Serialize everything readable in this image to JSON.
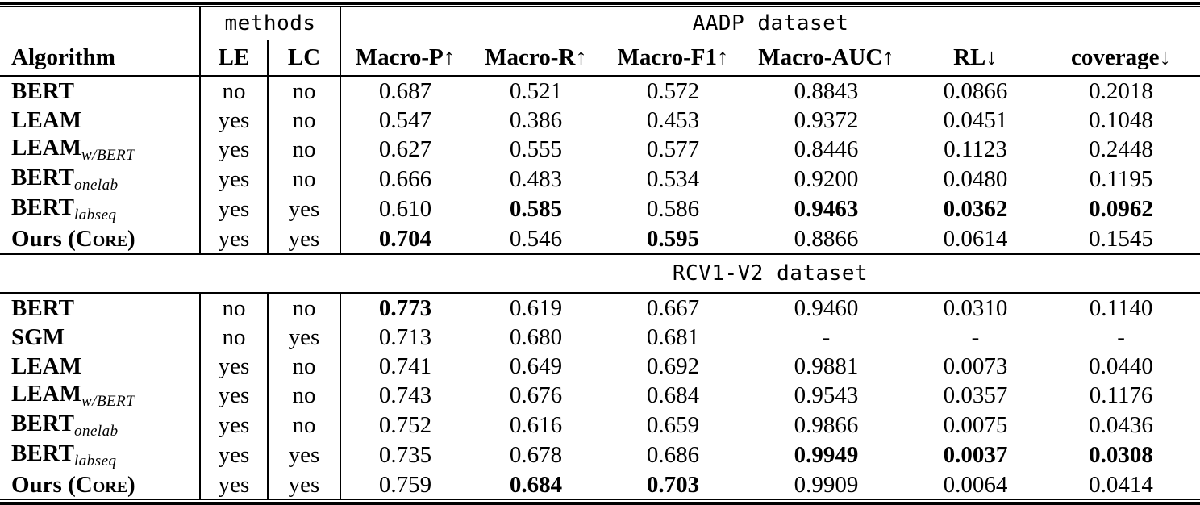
{
  "table": {
    "methods_label": "methods",
    "columns": [
      "Algorithm",
      "LE",
      "LC",
      "Macro-P↑",
      "Macro-R↑",
      "Macro-F1↑",
      "Macro-AUC↑",
      "RL↓",
      "coverage↓"
    ],
    "metric_keys": [
      "macro-p",
      "macro-r",
      "macro-f1",
      "macro-auc",
      "rl",
      "coverage"
    ],
    "sections": [
      {
        "dataset_label": "AADP dataset",
        "rows": [
          {
            "algo": {
              "text": "BERT"
            },
            "le": "no",
            "lc": "no",
            "values": [
              "0.687",
              "0.521",
              "0.572",
              "0.8843",
              "0.0866",
              "0.2018"
            ],
            "bold": []
          },
          {
            "algo": {
              "text": "LEAM"
            },
            "le": "yes",
            "lc": "no",
            "values": [
              "0.547",
              "0.386",
              "0.453",
              "0.9372",
              "0.0451",
              "0.1048"
            ],
            "bold": []
          },
          {
            "algo": {
              "text": "LEAM",
              "sub": "w/BERT"
            },
            "le": "yes",
            "lc": "no",
            "values": [
              "0.627",
              "0.555",
              "0.577",
              "0.8446",
              "0.1123",
              "0.2448"
            ],
            "bold": []
          },
          {
            "algo": {
              "text": "BERT",
              "sub": "onelab"
            },
            "le": "yes",
            "lc": "no",
            "values": [
              "0.666",
              "0.483",
              "0.534",
              "0.9200",
              "0.0480",
              "0.1195"
            ],
            "bold": []
          },
          {
            "algo": {
              "text": "BERT",
              "sub": "labseq"
            },
            "le": "yes",
            "lc": "yes",
            "values": [
              "0.610",
              "0.585",
              "0.586",
              "0.9463",
              "0.0362",
              "0.0962"
            ],
            "bold": [
              1,
              3,
              4,
              5
            ]
          },
          {
            "algo": {
              "text": "Ours (",
              "sc": "Core",
              "post": ")"
            },
            "le": "yes",
            "lc": "yes",
            "values": [
              "0.704",
              "0.546",
              "0.595",
              "0.8866",
              "0.0614",
              "0.1545"
            ],
            "bold": [
              0,
              2
            ]
          }
        ]
      },
      {
        "dataset_label": "RCV1-V2 dataset",
        "rows": [
          {
            "algo": {
              "text": "BERT"
            },
            "le": "no",
            "lc": "no",
            "values": [
              "0.773",
              "0.619",
              "0.667",
              "0.9460",
              "0.0310",
              "0.1140"
            ],
            "bold": [
              0
            ]
          },
          {
            "algo": {
              "text": "SGM"
            },
            "le": "no",
            "lc": "yes",
            "values": [
              "0.713",
              "0.680",
              "0.681",
              "-",
              "-",
              "-"
            ],
            "bold": []
          },
          {
            "algo": {
              "text": "LEAM"
            },
            "le": "yes",
            "lc": "no",
            "values": [
              "0.741",
              "0.649",
              "0.692",
              "0.9881",
              "0.0073",
              "0.0440"
            ],
            "bold": []
          },
          {
            "algo": {
              "text": "LEAM",
              "sub": "w/BERT"
            },
            "le": "yes",
            "lc": "no",
            "values": [
              "0.743",
              "0.676",
              "0.684",
              "0.9543",
              "0.0357",
              "0.1176"
            ],
            "bold": []
          },
          {
            "algo": {
              "text": "BERT",
              "sub": "onelab"
            },
            "le": "yes",
            "lc": "no",
            "values": [
              "0.752",
              "0.616",
              "0.659",
              "0.9866",
              "0.0075",
              "0.0436"
            ],
            "bold": []
          },
          {
            "algo": {
              "text": "BERT",
              "sub": "labseq"
            },
            "le": "yes",
            "lc": "yes",
            "values": [
              "0.735",
              "0.678",
              "0.686",
              "0.9949",
              "0.0037",
              "0.0308"
            ],
            "bold": [
              3,
              4,
              5
            ]
          },
          {
            "algo": {
              "text": "Ours (",
              "sc": "Core",
              "post": ")"
            },
            "le": "yes",
            "lc": "yes",
            "values": [
              "0.759",
              "0.684",
              "0.703",
              "0.9909",
              "0.0064",
              "0.0414"
            ],
            "bold": [
              1,
              2
            ]
          }
        ]
      }
    ]
  }
}
